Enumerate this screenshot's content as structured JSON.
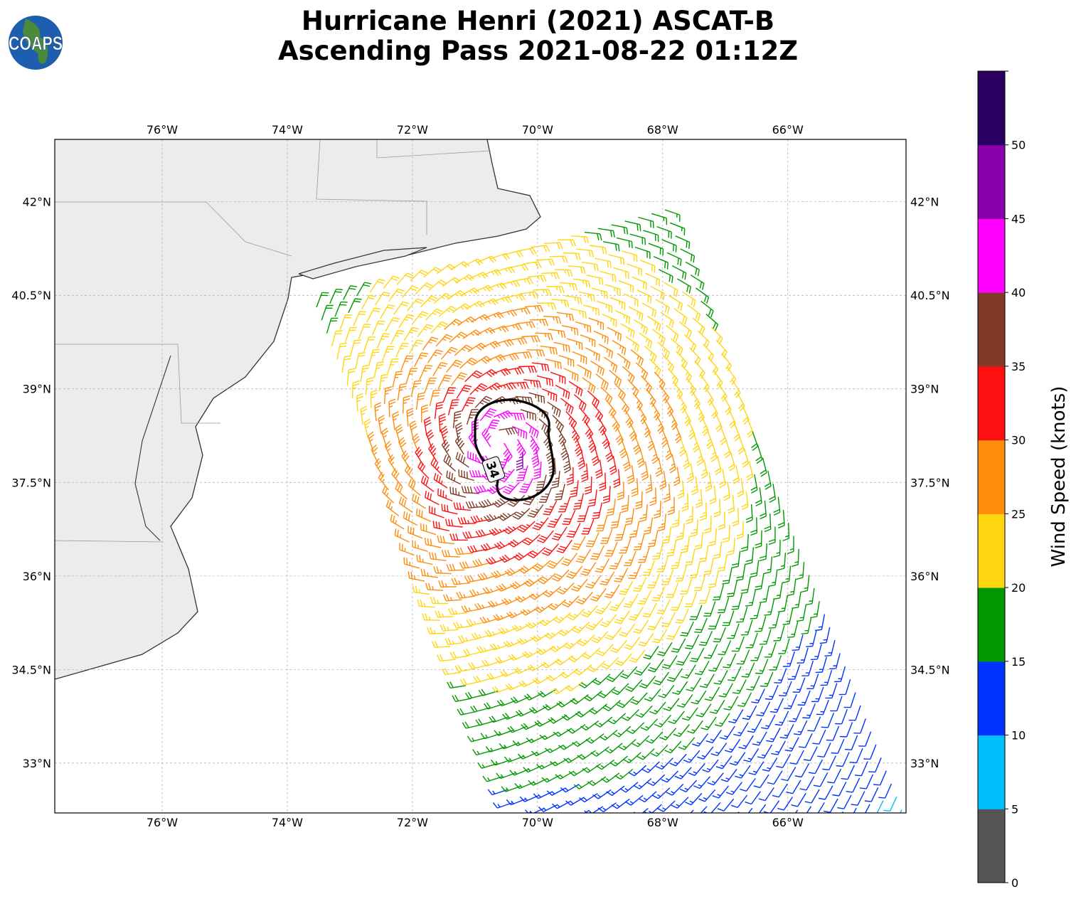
{
  "title_line1": "Hurricane Henri (2021) ASCAT-B",
  "title_line2": "Ascending Pass 2021-08-22 01:12Z",
  "logo_text": "COAPS",
  "map": {
    "lon_range": [
      -77.716,
      -64.11
    ],
    "lat_range": [
      32.2,
      43.0
    ],
    "lon_ticks": [
      {
        "value": -76,
        "label": "76°W"
      },
      {
        "value": -74,
        "label": "74°W"
      },
      {
        "value": -72,
        "label": "72°W"
      },
      {
        "value": -70,
        "label": "70°W"
      },
      {
        "value": -68,
        "label": "68°W"
      },
      {
        "value": -66,
        "label": "66°W"
      }
    ],
    "lat_ticks": [
      {
        "value": 42,
        "label": "42°N"
      },
      {
        "value": 40.5,
        "label": "40.5°N"
      },
      {
        "value": 39,
        "label": "39°N"
      },
      {
        "value": 37.5,
        "label": "37.5°N"
      },
      {
        "value": 36,
        "label": "36°N"
      },
      {
        "value": 34.5,
        "label": "34.5°N"
      },
      {
        "value": 33,
        "label": "33°N"
      }
    ],
    "storm_center": {
      "lon": -70.65,
      "lat": 38.1
    },
    "contour_label": "34"
  },
  "colorbar": {
    "label": "Wind Speed (knots)",
    "range": [
      0,
      55
    ],
    "tick_labels": [
      "0",
      "5",
      "10",
      "15",
      "20",
      "25",
      "30",
      "35",
      "40",
      "45",
      "50"
    ],
    "bands": [
      {
        "min": 0,
        "max": 5,
        "color": "#555555"
      },
      {
        "min": 5,
        "max": 10,
        "color": "#00bfff"
      },
      {
        "min": 10,
        "max": 15,
        "color": "#0033ff"
      },
      {
        "min": 15,
        "max": 20,
        "color": "#009900"
      },
      {
        "min": 20,
        "max": 25,
        "color": "#ffd511"
      },
      {
        "min": 25,
        "max": 30,
        "color": "#ff8c0a"
      },
      {
        "min": 30,
        "max": 35,
        "color": "#ff1010"
      },
      {
        "min": 35,
        "max": 40,
        "color": "#7f3b26"
      },
      {
        "min": 40,
        "max": 45,
        "color": "#ff00ff"
      },
      {
        "min": 45,
        "max": 50,
        "color": "#8800aa"
      },
      {
        "min": 50,
        "max": 55,
        "color": "#2a0060"
      }
    ]
  }
}
